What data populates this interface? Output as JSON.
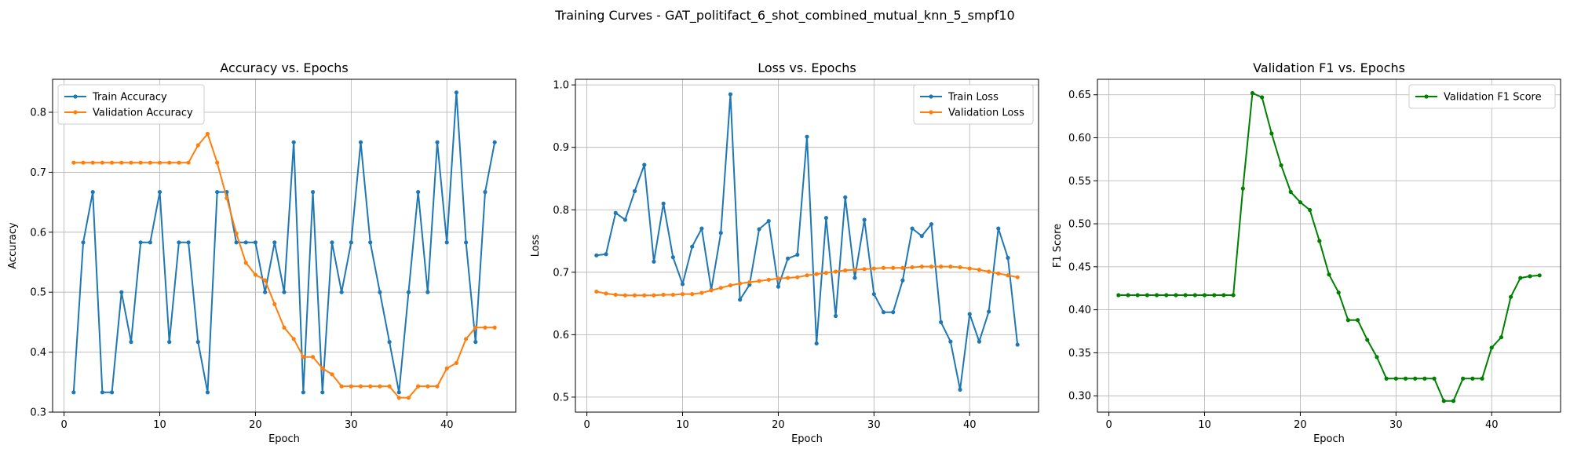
{
  "figure": {
    "title": "Training Curves - GAT_politifact_6_shot_combined_mutual_knn_5_smpf10"
  },
  "chart_data": [
    {
      "type": "line",
      "title": "Accuracy vs. Epochs",
      "xlabel": "Epoch",
      "ylabel": "Accuracy",
      "xlim": [
        -1.2,
        47.2
      ],
      "ylim": [
        0.3,
        0.855
      ],
      "xticks": [
        0,
        10,
        20,
        30,
        40
      ],
      "yticks": [
        0.3,
        0.4,
        0.5,
        0.6,
        0.7,
        0.8
      ],
      "ytick_labels": [
        "0.3",
        "0.4",
        "0.5",
        "0.6",
        "0.7",
        "0.8"
      ],
      "grid": true,
      "legend_position": "upper-left",
      "x": [
        1,
        2,
        3,
        4,
        5,
        6,
        7,
        8,
        9,
        10,
        11,
        12,
        13,
        14,
        15,
        16,
        17,
        18,
        19,
        20,
        21,
        22,
        23,
        24,
        25,
        26,
        27,
        28,
        29,
        30,
        31,
        32,
        33,
        34,
        35,
        36,
        37,
        38,
        39,
        40,
        41,
        42,
        43,
        44,
        45
      ],
      "series": [
        {
          "name": "Train Accuracy",
          "color": "#1f77b4",
          "values": [
            0.333,
            0.583,
            0.667,
            0.333,
            0.333,
            0.5,
            0.417,
            0.583,
            0.583,
            0.667,
            0.417,
            0.583,
            0.583,
            0.417,
            0.333,
            0.667,
            0.667,
            0.583,
            0.583,
            0.583,
            0.5,
            0.583,
            0.5,
            0.75,
            0.333,
            0.667,
            0.333,
            0.583,
            0.5,
            0.583,
            0.75,
            0.583,
            0.5,
            0.417,
            0.333,
            0.5,
            0.667,
            0.5,
            0.75,
            0.583,
            0.833,
            0.583,
            0.417,
            0.667,
            0.75
          ]
        },
        {
          "name": "Validation Accuracy",
          "color": "#ff7f0e",
          "values": [
            0.716,
            0.716,
            0.716,
            0.716,
            0.716,
            0.716,
            0.716,
            0.716,
            0.716,
            0.716,
            0.716,
            0.716,
            0.716,
            0.745,
            0.764,
            0.716,
            0.657,
            0.598,
            0.549,
            0.529,
            0.52,
            0.48,
            0.441,
            0.422,
            0.392,
            0.392,
            0.373,
            0.363,
            0.343,
            0.343,
            0.343,
            0.343,
            0.343,
            0.343,
            0.324,
            0.324,
            0.343,
            0.343,
            0.343,
            0.373,
            0.382,
            0.422,
            0.441,
            0.441,
            0.441
          ]
        }
      ]
    },
    {
      "type": "line",
      "title": "Loss vs. Epochs",
      "xlabel": "Epoch",
      "ylabel": "Loss",
      "xlim": [
        -1.2,
        47.2
      ],
      "ylim": [
        0.476,
        1.009
      ],
      "xticks": [
        0,
        10,
        20,
        30,
        40
      ],
      "yticks": [
        0.5,
        0.6,
        0.7,
        0.8,
        0.9,
        1.0
      ],
      "ytick_labels": [
        "0.5",
        "0.6",
        "0.7",
        "0.8",
        "0.9",
        "1.0"
      ],
      "grid": true,
      "legend_position": "upper-right",
      "x": [
        1,
        2,
        3,
        4,
        5,
        6,
        7,
        8,
        9,
        10,
        11,
        12,
        13,
        14,
        15,
        16,
        17,
        18,
        19,
        20,
        21,
        22,
        23,
        24,
        25,
        26,
        27,
        28,
        29,
        30,
        31,
        32,
        33,
        34,
        35,
        36,
        37,
        38,
        39,
        40,
        41,
        42,
        43,
        44,
        45
      ],
      "series": [
        {
          "name": "Train Loss",
          "color": "#1f77b4",
          "values": [
            0.727,
            0.729,
            0.795,
            0.784,
            0.83,
            0.872,
            0.717,
            0.81,
            0.724,
            0.681,
            0.741,
            0.77,
            0.672,
            0.763,
            0.985,
            0.656,
            0.68,
            0.769,
            0.782,
            0.677,
            0.722,
            0.728,
            0.917,
            0.586,
            0.787,
            0.63,
            0.82,
            0.691,
            0.784,
            0.665,
            0.636,
            0.636,
            0.687,
            0.77,
            0.758,
            0.777,
            0.62,
            0.589,
            0.512,
            0.633,
            0.589,
            0.637,
            0.77,
            0.723,
            0.584
          ]
        },
        {
          "name": "Validation Loss",
          "color": "#ff7f0e",
          "values": [
            0.669,
            0.666,
            0.664,
            0.663,
            0.663,
            0.663,
            0.663,
            0.664,
            0.664,
            0.665,
            0.665,
            0.667,
            0.671,
            0.675,
            0.679,
            0.682,
            0.684,
            0.686,
            0.688,
            0.69,
            0.691,
            0.692,
            0.695,
            0.697,
            0.699,
            0.701,
            0.703,
            0.704,
            0.705,
            0.706,
            0.707,
            0.707,
            0.707,
            0.708,
            0.709,
            0.709,
            0.709,
            0.709,
            0.708,
            0.706,
            0.704,
            0.701,
            0.698,
            0.695,
            0.692
          ]
        }
      ]
    },
    {
      "type": "line",
      "title": "Validation F1 vs. Epochs",
      "xlabel": "Epoch",
      "ylabel": "F1 Score",
      "xlim": [
        -1.2,
        47.2
      ],
      "ylim": [
        0.281,
        0.668
      ],
      "xticks": [
        0,
        10,
        20,
        30,
        40
      ],
      "yticks": [
        0.3,
        0.35,
        0.4,
        0.45,
        0.5,
        0.55,
        0.6,
        0.65
      ],
      "ytick_labels": [
        "0.30",
        "0.35",
        "0.40",
        "0.45",
        "0.50",
        "0.55",
        "0.60",
        "0.65"
      ],
      "grid": true,
      "legend_position": "upper-right",
      "x": [
        1,
        2,
        3,
        4,
        5,
        6,
        7,
        8,
        9,
        10,
        11,
        12,
        13,
        14,
        15,
        16,
        17,
        18,
        19,
        20,
        21,
        22,
        23,
        24,
        25,
        26,
        27,
        28,
        29,
        30,
        31,
        32,
        33,
        34,
        35,
        36,
        37,
        38,
        39,
        40,
        41,
        42,
        43,
        44,
        45
      ],
      "series": [
        {
          "name": "Validation F1 Score",
          "color": "#008000",
          "values": [
            0.417,
            0.417,
            0.417,
            0.417,
            0.417,
            0.417,
            0.417,
            0.417,
            0.417,
            0.417,
            0.417,
            0.417,
            0.417,
            0.541,
            0.652,
            0.647,
            0.605,
            0.568,
            0.537,
            0.525,
            0.516,
            0.48,
            0.441,
            0.42,
            0.388,
            0.388,
            0.365,
            0.345,
            0.32,
            0.32,
            0.32,
            0.32,
            0.32,
            0.32,
            0.294,
            0.294,
            0.32,
            0.32,
            0.32,
            0.356,
            0.368,
            0.415,
            0.437,
            0.439,
            0.44
          ]
        }
      ]
    }
  ]
}
